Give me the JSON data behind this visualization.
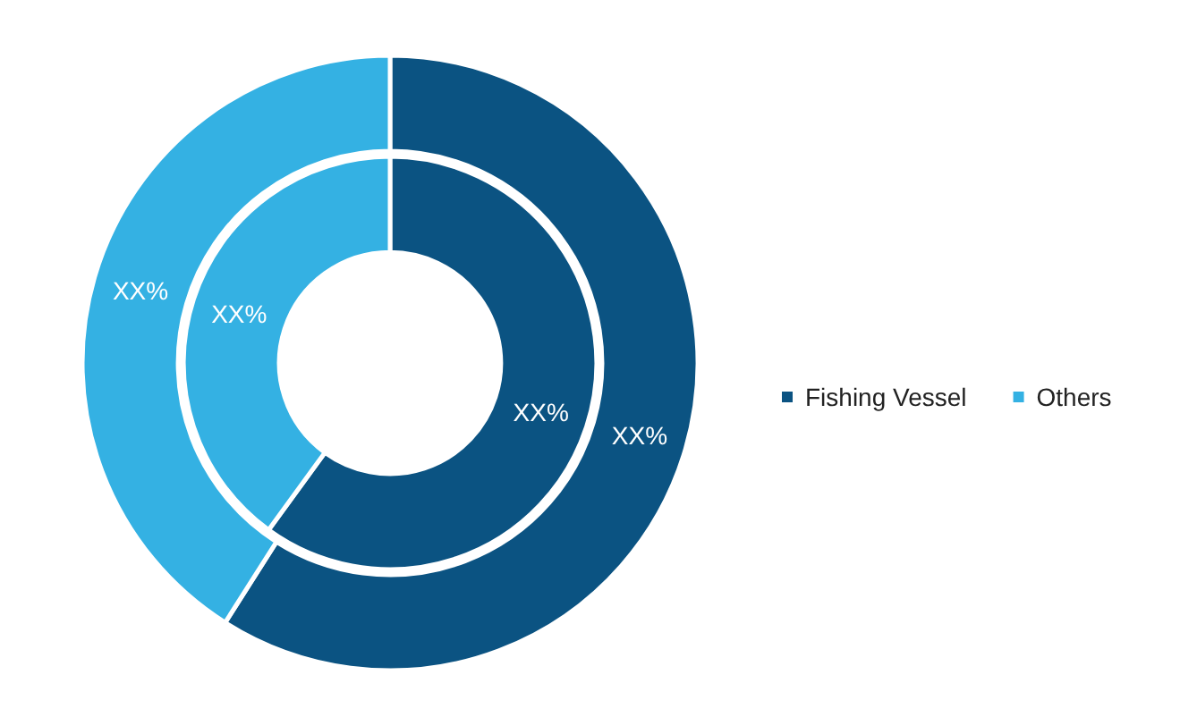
{
  "chart_data": {
    "type": "donut",
    "categories": [
      "Fishing Vessel",
      "Others"
    ],
    "colors": [
      "#0b5382",
      "#34b1e3"
    ],
    "series": [
      {
        "values": [
          60,
          40
        ],
        "value_labels": [
          "XX%",
          "XX%"
        ]
      },
      {
        "values": [
          59,
          41
        ],
        "value_labels": [
          "XX%",
          "XX%"
        ]
      }
    ],
    "legend": "right"
  }
}
